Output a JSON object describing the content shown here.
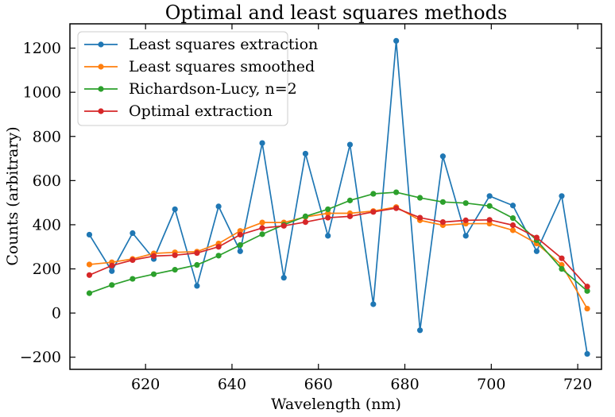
{
  "chart_data": {
    "type": "line",
    "title": "Optimal and least squares methods",
    "xlabel": "Wavelength (nm)",
    "ylabel": "Counts (arbitrary)",
    "xlim": [
      602.5,
      725.5
    ],
    "ylim": [
      -255,
      1310
    ],
    "xticks": [
      620,
      640,
      660,
      680,
      700,
      720
    ],
    "yticks": [
      -200,
      0,
      200,
      400,
      600,
      800,
      1000,
      1200
    ],
    "xtick_labels": [
      "620",
      "640",
      "660",
      "680",
      "700",
      "720"
    ],
    "ytick_labels": [
      "−200",
      "0",
      "200",
      "400",
      "600",
      "800",
      "1000",
      "1200"
    ],
    "grid": false,
    "legend_position": "top-left",
    "x": [
      607.0,
      612.2,
      617.0,
      621.9,
      626.8,
      631.9,
      636.9,
      641.9,
      647.0,
      652.0,
      657.0,
      662.2,
      667.3,
      672.7,
      678.0,
      683.5,
      688.8,
      694.1,
      699.6,
      705.0,
      710.5,
      716.3,
      722.2
    ],
    "series": [
      {
        "name": "Least squares extraction",
        "color": "#1f77b4",
        "values": [
          355,
          190,
          362,
          245,
          470,
          123,
          483,
          280,
          770,
          160,
          722,
          350,
          763,
          40,
          1233,
          -78,
          710,
          350,
          530,
          487,
          280,
          530,
          -185
        ]
      },
      {
        "name": "Least squares smoothed",
        "color": "#ff7f0e",
        "values": [
          220,
          230,
          245,
          270,
          275,
          278,
          315,
          372,
          410,
          410,
          435,
          452,
          452,
          462,
          480,
          420,
          398,
          405,
          405,
          375,
          315,
          218,
          20
        ]
      },
      {
        "name": "Richardson-Lucy, n=2",
        "color": "#2ca02c",
        "values": [
          90,
          127,
          155,
          176,
          196,
          218,
          260,
          308,
          357,
          400,
          438,
          470,
          510,
          540,
          547,
          522,
          503,
          498,
          485,
          430,
          330,
          200,
          100
        ]
      },
      {
        "name": "Optimal extraction",
        "color": "#d62728",
        "values": [
          172,
          215,
          240,
          258,
          262,
          272,
          300,
          355,
          385,
          395,
          412,
          432,
          438,
          458,
          475,
          432,
          412,
          420,
          422,
          398,
          342,
          248,
          120
        ]
      }
    ]
  }
}
